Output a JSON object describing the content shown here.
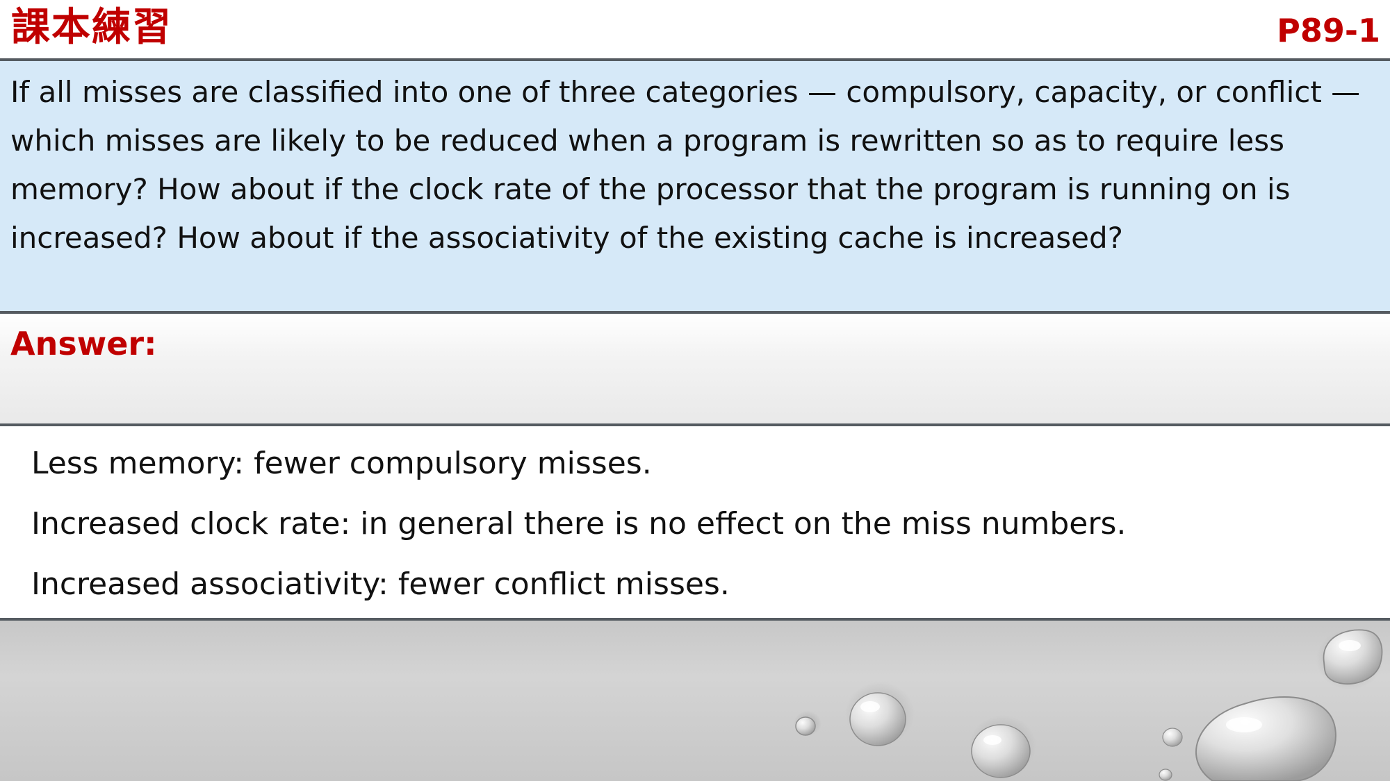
{
  "header": {
    "slide_label": "課本練習",
    "page_ref": "P89-1"
  },
  "question": {
    "text": "If all misses are classified into one of three categories — compulsory, capacity, or conflict — which misses are likely to be reduced when a program is rewritten so as to require less memory? How about if the clock rate of the processor that the program is running on is increased? How about if the associativity of the existing cache is increased?"
  },
  "answer": {
    "label": "Answer:",
    "lines": [
      "Less memory: fewer compulsory misses.",
      "Increased clock rate: in general there is no effect on the miss numbers.",
      "Increased associativity: fewer conflict misses."
    ]
  },
  "colors": {
    "accent_red": "#c00000",
    "question_bg": "#d6e9f8",
    "rule": "#555b61"
  },
  "decoration": {
    "footer_image": "water-droplets"
  }
}
